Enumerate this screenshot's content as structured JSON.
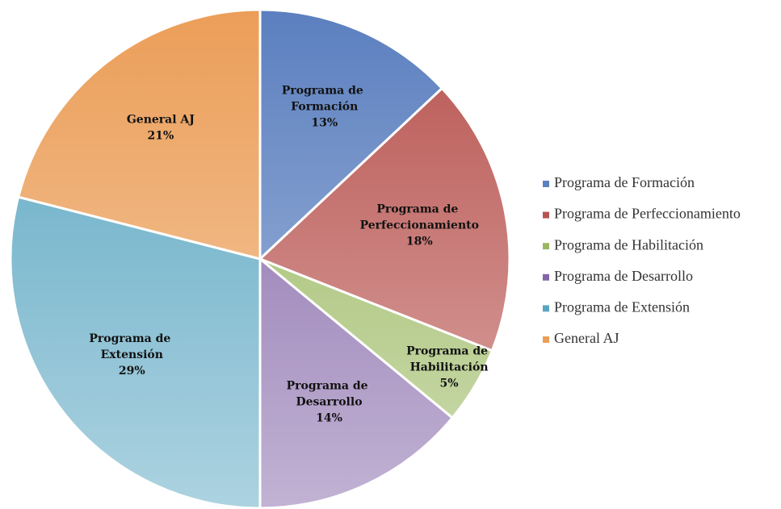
{
  "chart_data": {
    "type": "pie",
    "categories": [
      "Programa de Formación",
      "Programa de Perfeccionamiento",
      "Programa de Habilitación",
      "Programa de Desarrollo",
      "Programa de Extensión",
      "General AJ"
    ],
    "values": [
      13,
      18,
      5,
      14,
      29,
      21
    ],
    "value_labels": [
      "13%",
      "18%",
      "5%",
      "14%",
      "29%",
      "21%"
    ],
    "colors": [
      "#5b7fbf",
      "#b85450",
      "#9ab860",
      "#8466a8",
      "#5aa6c2",
      "#eb9e58"
    ],
    "legend": "right"
  }
}
